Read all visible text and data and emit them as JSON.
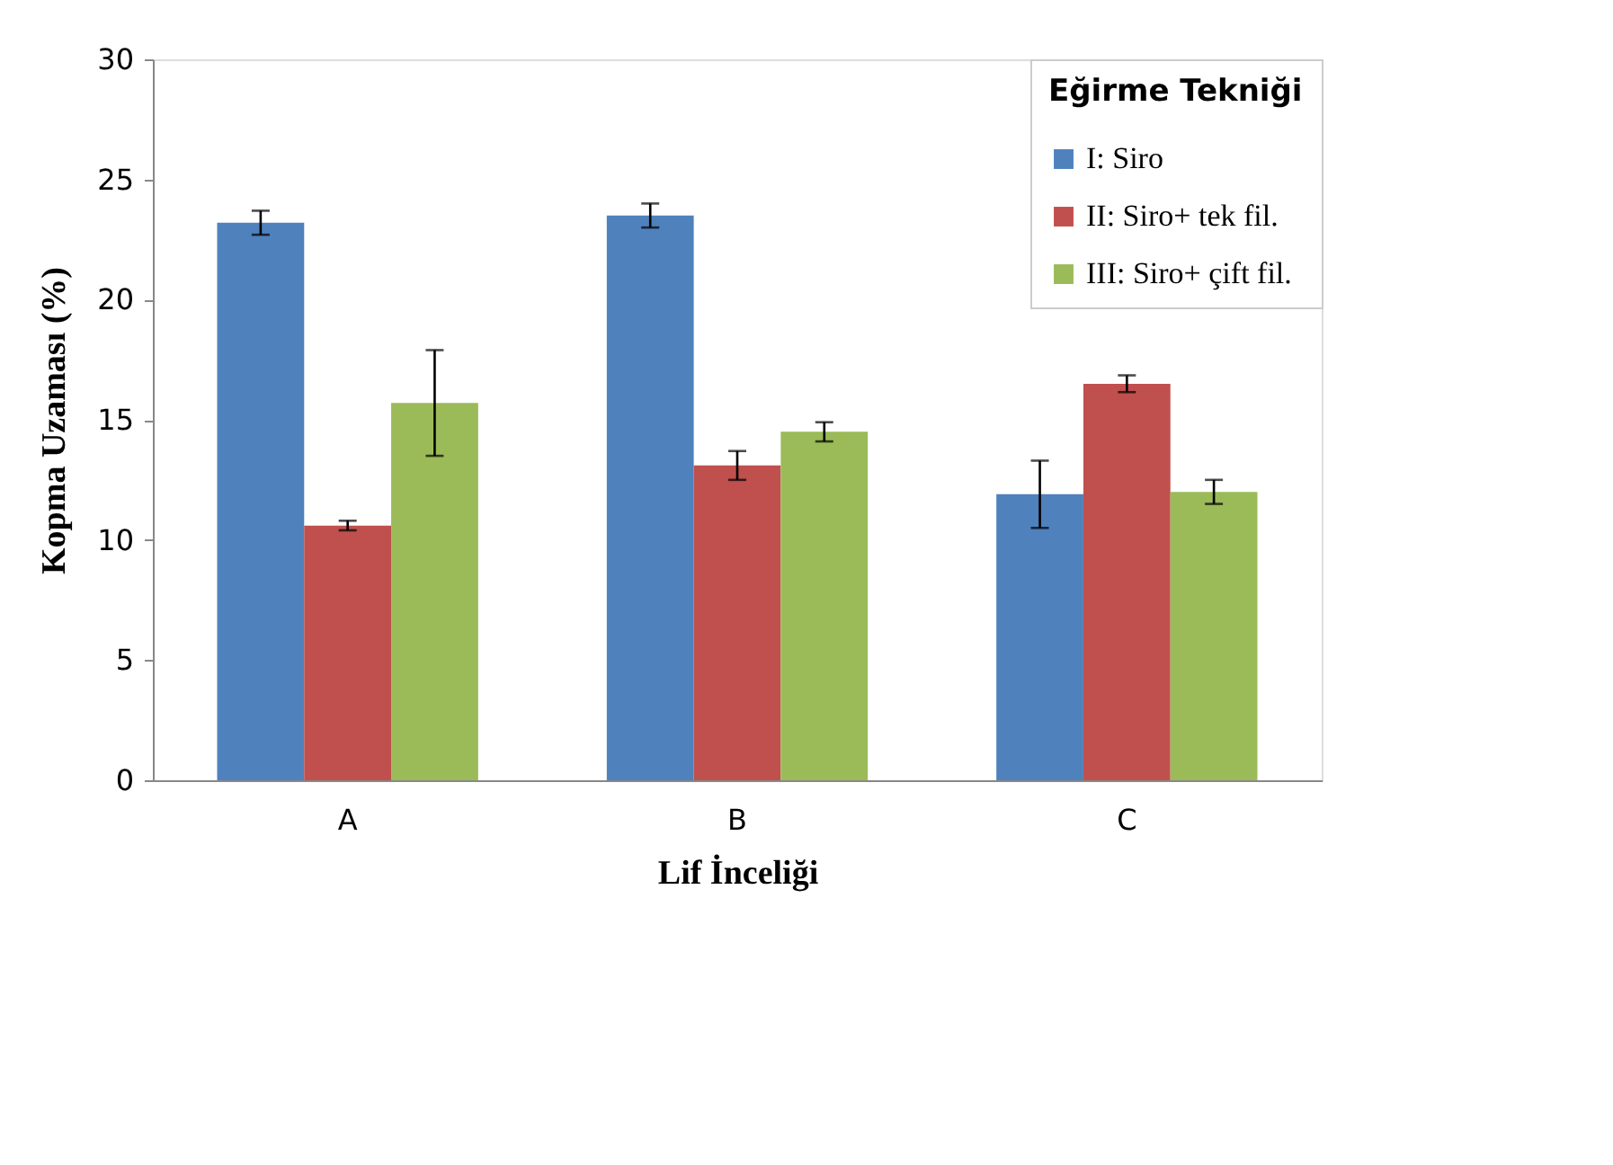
{
  "chart_data": {
    "type": "bar",
    "xlabel": "Lif İnceliği",
    "ylabel": "Kopma Uzaması (%)",
    "legend_title": "Eğirme Tekniği",
    "categories": [
      "A",
      "B",
      "C"
    ],
    "series": [
      {
        "name": "I: Siro",
        "color": "#4f81bd",
        "values": [
          23.2,
          23.5,
          11.9
        ],
        "errors": [
          0.5,
          0.5,
          1.4
        ]
      },
      {
        "name": "II: Siro+ tek fil.",
        "color": "#c0504d",
        "values": [
          10.6,
          13.1,
          16.5
        ],
        "errors": [
          0.2,
          0.6,
          0.35
        ]
      },
      {
        "name": "III: Siro+ çift fil.",
        "color": "#9bbb59",
        "values": [
          15.7,
          14.5,
          12.0
        ],
        "errors": [
          2.2,
          0.4,
          0.5
        ]
      }
    ],
    "ylim": [
      0,
      30
    ],
    "yticks": [
      0,
      5,
      10,
      15,
      20,
      25,
      30
    ],
    "grid": false,
    "legend": "top right"
  }
}
